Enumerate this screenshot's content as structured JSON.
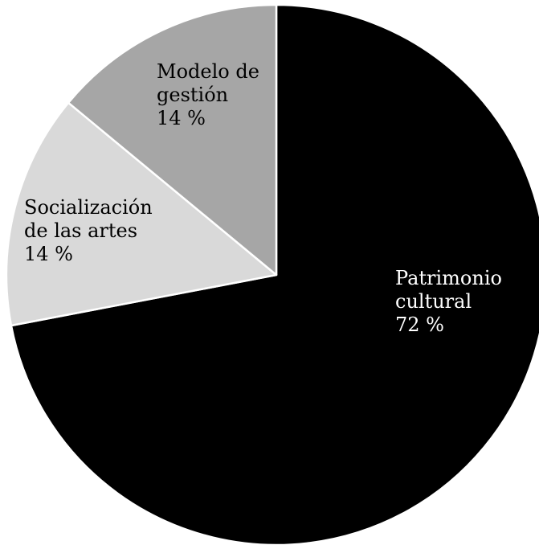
{
  "chart_data": {
    "type": "pie",
    "title": "",
    "slices": [
      {
        "label_lines": [
          "Patrimonio",
          "cultural"
        ],
        "value": 72,
        "value_label": "72 %",
        "color": "#000000",
        "text_color": "#ffffff"
      },
      {
        "label_lines": [
          "Socialización",
          "de las artes"
        ],
        "value": 14,
        "value_label": "14 %",
        "color": "#d9d9d9",
        "text_color": "#000000"
      },
      {
        "label_lines": [
          "Modelo de",
          "gestión"
        ],
        "value": 14,
        "value_label": "14 %",
        "color": "#a6a6a6",
        "text_color": "#000000"
      }
    ],
    "start_angle": "12 o'clock",
    "direction": "clockwise",
    "legend": "none",
    "slice_border_color": "#ffffff"
  }
}
